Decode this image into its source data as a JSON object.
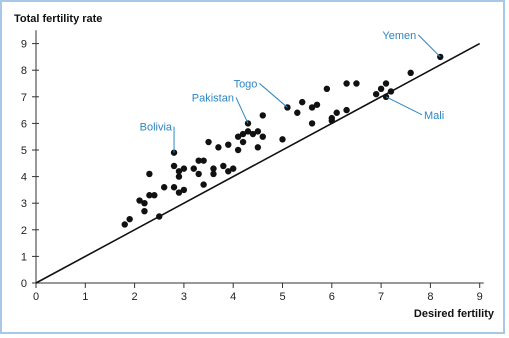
{
  "chart_data": {
    "type": "scatter",
    "title": "",
    "xlabel": "Desired fertility",
    "ylabel": "Total fertility rate",
    "xlim": [
      0,
      9
    ],
    "ylim": [
      0,
      9.5
    ],
    "x_ticks": [
      "0",
      "1",
      "2",
      "3",
      "4",
      "5",
      "6",
      "7",
      "8",
      "9"
    ],
    "y_ticks": [
      "0",
      "1",
      "2",
      "3",
      "4",
      "5",
      "6",
      "7",
      "8",
      "9"
    ],
    "grid": false,
    "reference_line": {
      "from": [
        0,
        0
      ],
      "to": [
        9,
        9
      ]
    },
    "points": [
      {
        "x": 1.8,
        "y": 2.2
      },
      {
        "x": 1.9,
        "y": 2.4
      },
      {
        "x": 2.1,
        "y": 3.1
      },
      {
        "x": 2.2,
        "y": 3.0
      },
      {
        "x": 2.2,
        "y": 2.7
      },
      {
        "x": 2.3,
        "y": 4.1
      },
      {
        "x": 2.3,
        "y": 3.3
      },
      {
        "x": 2.4,
        "y": 3.3
      },
      {
        "x": 2.5,
        "y": 2.5
      },
      {
        "x": 2.6,
        "y": 3.6
      },
      {
        "x": 2.8,
        "y": 4.9
      },
      {
        "x": 2.8,
        "y": 4.4
      },
      {
        "x": 2.8,
        "y": 3.6
      },
      {
        "x": 2.9,
        "y": 4.2
      },
      {
        "x": 2.9,
        "y": 4.0
      },
      {
        "x": 2.9,
        "y": 3.4
      },
      {
        "x": 3.0,
        "y": 4.3
      },
      {
        "x": 3.0,
        "y": 3.5
      },
      {
        "x": 3.2,
        "y": 4.3
      },
      {
        "x": 3.3,
        "y": 4.6
      },
      {
        "x": 3.3,
        "y": 4.1
      },
      {
        "x": 3.4,
        "y": 4.6
      },
      {
        "x": 3.4,
        "y": 3.7
      },
      {
        "x": 3.5,
        "y": 5.3
      },
      {
        "x": 3.6,
        "y": 4.3
      },
      {
        "x": 3.6,
        "y": 4.1
      },
      {
        "x": 3.7,
        "y": 5.1
      },
      {
        "x": 3.8,
        "y": 4.4
      },
      {
        "x": 3.9,
        "y": 5.2
      },
      {
        "x": 3.9,
        "y": 4.2
      },
      {
        "x": 4.0,
        "y": 4.3
      },
      {
        "x": 4.1,
        "y": 5.5
      },
      {
        "x": 4.1,
        "y": 5.0
      },
      {
        "x": 4.2,
        "y": 5.6
      },
      {
        "x": 4.2,
        "y": 5.3
      },
      {
        "x": 4.3,
        "y": 6.0
      },
      {
        "x": 4.3,
        "y": 5.7
      },
      {
        "x": 4.4,
        "y": 5.6
      },
      {
        "x": 4.5,
        "y": 5.7
      },
      {
        "x": 4.5,
        "y": 5.1
      },
      {
        "x": 4.6,
        "y": 6.3
      },
      {
        "x": 4.6,
        "y": 5.5
      },
      {
        "x": 5.0,
        "y": 5.4
      },
      {
        "x": 5.1,
        "y": 6.6
      },
      {
        "x": 5.3,
        "y": 6.4
      },
      {
        "x": 5.4,
        "y": 6.8
      },
      {
        "x": 5.6,
        "y": 6.6
      },
      {
        "x": 5.6,
        "y": 6.0
      },
      {
        "x": 5.7,
        "y": 6.7
      },
      {
        "x": 5.9,
        "y": 7.3
      },
      {
        "x": 6.0,
        "y": 6.2
      },
      {
        "x": 6.0,
        "y": 6.1
      },
      {
        "x": 6.1,
        "y": 6.4
      },
      {
        "x": 6.3,
        "y": 7.5
      },
      {
        "x": 6.3,
        "y": 6.5
      },
      {
        "x": 6.5,
        "y": 7.5
      },
      {
        "x": 6.9,
        "y": 7.1
      },
      {
        "x": 7.0,
        "y": 7.3
      },
      {
        "x": 7.1,
        "y": 7.5
      },
      {
        "x": 7.1,
        "y": 7.0
      },
      {
        "x": 7.2,
        "y": 7.2
      },
      {
        "x": 7.6,
        "y": 7.9
      },
      {
        "x": 8.2,
        "y": 8.5
      }
    ],
    "annotations": [
      {
        "text": "Bolivia",
        "x": 2.8,
        "y": 4.9
      },
      {
        "text": "Pakistan",
        "x": 4.3,
        "y": 6.0
      },
      {
        "text": "Togo",
        "x": 5.1,
        "y": 6.6
      },
      {
        "text": "Yemen",
        "x": 8.2,
        "y": 8.5
      },
      {
        "text": "Mali",
        "x": 7.1,
        "y": 7.0
      }
    ],
    "colors": {
      "points": "#111111",
      "axes": "#333333",
      "annotation_text": "#2e86c1",
      "annotation_leader": "#2e86c1",
      "frame": "#a9c8e8"
    }
  }
}
